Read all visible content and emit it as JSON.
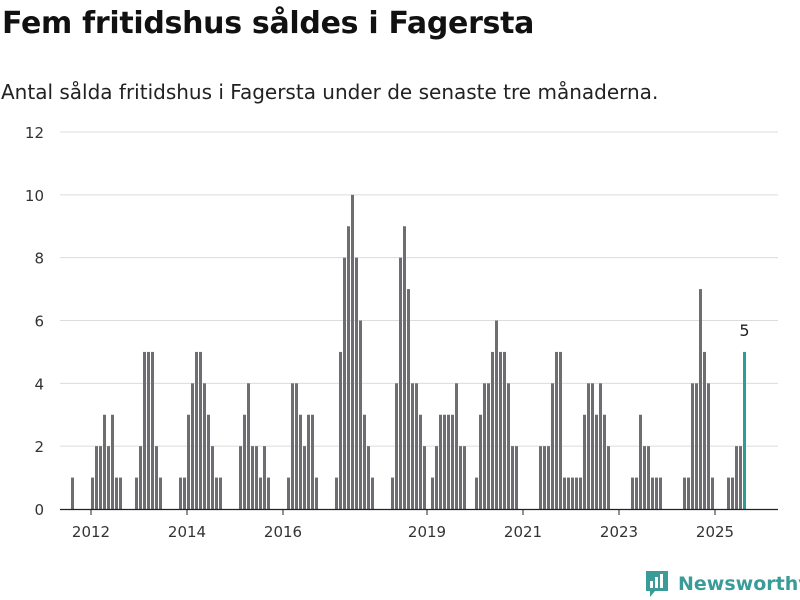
{
  "title": "Fem fritidshus såldes i Fagersta",
  "subtitle": "Antal sålda fritidshus i Fagersta under de senaste tre månaderna.",
  "brand": {
    "name": "Newsworthy",
    "color": "#3a9c98"
  },
  "colors": {
    "bar": "#6e6d72",
    "highlight": "#2a9d97",
    "grid": "#dcdcdc"
  },
  "chart_data": {
    "type": "bar",
    "x_start": "2012-01",
    "frequency": "monthly",
    "values": [
      0,
      0,
      1,
      0,
      0,
      0,
      0,
      1,
      2,
      2,
      3,
      2,
      3,
      1,
      1,
      0,
      0,
      0,
      1,
      2,
      5,
      5,
      5,
      2,
      1,
      0,
      0,
      0,
      0,
      1,
      1,
      3,
      4,
      5,
      5,
      4,
      3,
      2,
      1,
      1,
      0,
      0,
      0,
      0,
      2,
      3,
      4,
      2,
      2,
      1,
      2,
      1,
      0,
      0,
      0,
      0,
      1,
      4,
      4,
      3,
      2,
      3,
      3,
      1,
      0,
      0,
      0,
      0,
      1,
      5,
      8,
      9,
      10,
      8,
      6,
      3,
      2,
      1,
      0,
      0,
      0,
      0,
      1,
      4,
      8,
      9,
      7,
      4,
      4,
      3,
      2,
      0,
      1,
      2,
      3,
      3,
      3,
      3,
      4,
      2,
      2,
      0,
      0,
      1,
      3,
      4,
      4,
      5,
      6,
      5,
      5,
      4,
      2,
      2,
      0,
      0,
      0,
      0,
      0,
      2,
      2,
      2,
      4,
      5,
      5,
      1,
      1,
      1,
      1,
      1,
      3,
      4,
      4,
      3,
      4,
      3,
      2,
      0,
      0,
      0,
      0,
      0,
      1,
      1,
      3,
      2,
      2,
      1,
      1,
      1,
      0,
      0,
      0,
      0,
      0,
      1,
      1,
      4,
      4,
      7,
      5,
      4,
      1,
      0,
      0,
      0,
      1,
      1,
      2,
      2,
      5
    ],
    "highlight_last": true,
    "highlight_label": "5",
    "x_ticks": [
      {
        "label": "2012",
        "year": 2012
      },
      {
        "label": "2014",
        "year": 2014
      },
      {
        "label": "2016",
        "year": 2016
      },
      {
        "label": "2019",
        "year": 2019
      },
      {
        "label": "2021",
        "year": 2021
      },
      {
        "label": "2023",
        "year": 2023
      },
      {
        "label": "2025",
        "year": 2025
      }
    ],
    "y_ticks": [
      0,
      2,
      4,
      6,
      8,
      10,
      12
    ],
    "ylim": [
      0,
      12
    ],
    "grid": true,
    "legend": "none",
    "xlabel": "",
    "ylabel": ""
  }
}
